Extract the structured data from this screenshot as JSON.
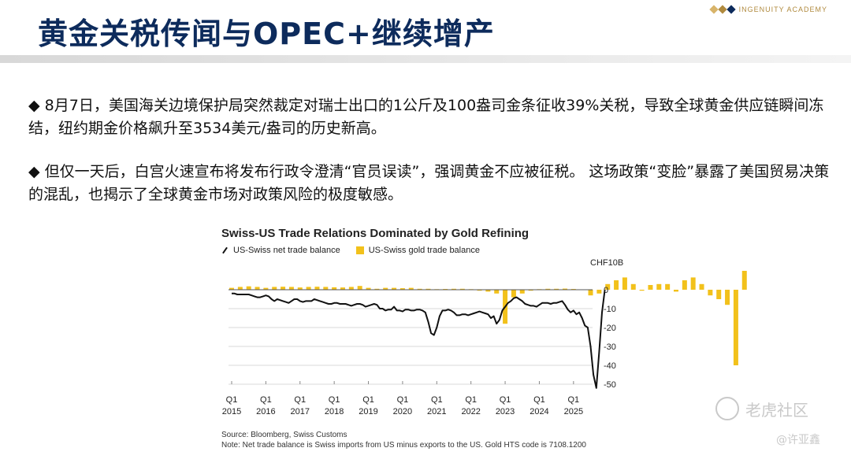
{
  "header": {
    "title": "黄金关税传闻与OPEC+继续增产",
    "brand": "INGENUITY ACADEMY"
  },
  "bullets": [
    "◆  8月7日，美国海关边境保护局突然裁定对瑞士出口的1公斤及100盎司金条征收39%关税，导致全球黄金供应链瞬间冻结，纽约期金价格飙升至3534美元/盎司的历史新高。",
    "◆  但仅一天后，白宫火速宣布将发布行政令澄清“官员误读”，强调黄金不应被征税。 这场政策“变脸”暴露了美国贸易决策的混乱，也揭示了全球黄金市场对政策风险的极度敏感。"
  ],
  "watermark": {
    "community": "老虎社区",
    "author": "@许亚鑫"
  },
  "colors": {
    "title": "#0d2b5c",
    "gold": "#f2c11b",
    "line": "#111111",
    "brand": "#b08a3e"
  },
  "chart_data": {
    "type": "bar+line",
    "title": "Swiss-US Trade Relations Dominated by Gold Refining",
    "unit_label": "CHF10B",
    "legend": [
      "US-Swiss net trade balance",
      "US-Swiss gold trade balance"
    ],
    "series": [
      {
        "name": "US-Swiss net trade balance",
        "type": "line",
        "x_start": "2015-01",
        "frequency": "monthly",
        "values": [
          -2,
          -2,
          -2.5,
          -2.5,
          -2.5,
          -2.5,
          -2.5,
          -3,
          -3.5,
          -4,
          -4,
          -3.5,
          -3,
          -3.5,
          -5,
          -6,
          -5,
          -5.5,
          -6,
          -6.5,
          -7,
          -6,
          -5,
          -5,
          -6,
          -6.5,
          -6,
          -6,
          -6,
          -5,
          -5.5,
          -6,
          -6.5,
          -7,
          -7.5,
          -7.5,
          -7,
          -7,
          -7.5,
          -7.5,
          -7.5,
          -8,
          -8.5,
          -8,
          -7.5,
          -7.5,
          -8,
          -9,
          -8.5,
          -8,
          -7.5,
          -8,
          -10,
          -10,
          -11,
          -10.5,
          -10.5,
          -9,
          -11,
          -11,
          -11.5,
          -10.5,
          -10.5,
          -11,
          -11,
          -10.5,
          -10.5,
          -11,
          -12,
          -17,
          -23,
          -24,
          -20,
          -14,
          -11,
          -11,
          -10.5,
          -11,
          -12,
          -13.5,
          -13.5,
          -13,
          -13,
          -13.5,
          -13,
          -12.5,
          -12,
          -11.5,
          -12,
          -12.5,
          -13,
          -15,
          -14,
          -18,
          -16,
          -11,
          -9,
          -7,
          -6,
          -4.5,
          -4,
          -5,
          -6,
          -7.5,
          -8,
          -8.5,
          -8.5,
          -9,
          -8,
          -7,
          -7,
          -7,
          -7.5,
          -7,
          -7,
          -6.5,
          -6,
          -8,
          -10.5,
          -12,
          -11,
          -13,
          -12,
          -15,
          -19,
          -20,
          -30,
          -45,
          -52,
          -33,
          -12,
          0
        ],
        "range": [
          -50,
          10
        ]
      },
      {
        "name": "US-Swiss gold trade balance",
        "type": "bar",
        "x_start": "2015-01",
        "frequency": "quarterly",
        "values": [
          1,
          1.5,
          1.8,
          1.5,
          1,
          1.5,
          1.6,
          1.5,
          1.2,
          1.5,
          1.6,
          1.5,
          1.3,
          1.2,
          1.5,
          2,
          1,
          0.5,
          1,
          1,
          0.8,
          1,
          0.5,
          0.5,
          0.3,
          0.4,
          0.5,
          0.5,
          0.3,
          -0.5,
          -1,
          -2,
          -18,
          -4,
          -2,
          -0.5,
          0.3,
          0.5,
          0.5,
          0.6,
          0.4,
          0.2,
          -3,
          -2,
          3,
          5,
          6.5,
          3,
          -0.5,
          2.5,
          3,
          3,
          -1,
          5,
          6.5,
          3,
          -3,
          -5,
          -8,
          -40,
          10
        ],
        "range": [
          -50,
          10
        ]
      }
    ],
    "x_ticks": [
      {
        "label_top": "Q1",
        "label_bottom": "2015"
      },
      {
        "label_top": "Q1",
        "label_bottom": "2016"
      },
      {
        "label_top": "Q1",
        "label_bottom": "2017"
      },
      {
        "label_top": "Q1",
        "label_bottom": "2018"
      },
      {
        "label_top": "Q1",
        "label_bottom": "2019"
      },
      {
        "label_top": "Q1",
        "label_bottom": "2020"
      },
      {
        "label_top": "Q1",
        "label_bottom": "2021"
      },
      {
        "label_top": "Q1",
        "label_bottom": "2022"
      },
      {
        "label_top": "Q1",
        "label_bottom": "2023"
      },
      {
        "label_top": "Q1",
        "label_bottom": "2024"
      },
      {
        "label_top": "Q1",
        "label_bottom": "2025"
      }
    ],
    "y_ticks": [
      0,
      -10,
      -20,
      -30,
      -40,
      -50
    ],
    "source": "Source: Bloomberg, Swiss Customs",
    "note": "Note: Net trade balance is Swiss imports from US minus exports to the US. Gold HTS code is 7108.1200"
  }
}
